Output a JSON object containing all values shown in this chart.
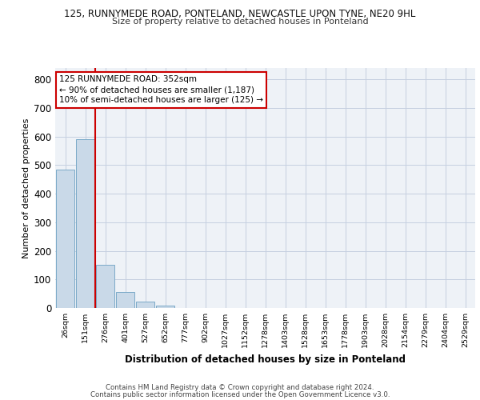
{
  "title_line1": "125, RUNNYMEDE ROAD, PONTELAND, NEWCASTLE UPON TYNE, NE20 9HL",
  "title_line2": "Size of property relative to detached houses in Ponteland",
  "xlabel": "Distribution of detached houses by size in Ponteland",
  "ylabel": "Number of detached properties",
  "bar_labels": [
    "26sqm",
    "151sqm",
    "276sqm",
    "401sqm",
    "527sqm",
    "652sqm",
    "777sqm",
    "902sqm",
    "1027sqm",
    "1152sqm",
    "1278sqm",
    "1403sqm",
    "1528sqm",
    "1653sqm",
    "1778sqm",
    "1903sqm",
    "2028sqm",
    "2154sqm",
    "2279sqm",
    "2404sqm",
    "2529sqm"
  ],
  "bar_values": [
    484,
    592,
    150,
    55,
    22,
    8,
    0,
    0,
    0,
    0,
    0,
    0,
    0,
    0,
    0,
    0,
    0,
    0,
    0,
    0,
    0
  ],
  "bar_color": "#c9d9e8",
  "bar_edge_color": "#7aaac8",
  "annotation_text_line1": "125 RUNNYMEDE ROAD: 352sqm",
  "annotation_text_line2": "← 90% of detached houses are smaller (1,187)",
  "annotation_text_line3": "10% of semi-detached houses are larger (125) →",
  "ylim": [
    0,
    840
  ],
  "yticks": [
    0,
    100,
    200,
    300,
    400,
    500,
    600,
    700,
    800
  ],
  "bg_color": "#eef2f7",
  "grid_color": "#c5cfe0",
  "footer_line1": "Contains HM Land Registry data © Crown copyright and database right 2024.",
  "footer_line2": "Contains public sector information licensed under the Open Government Licence v3.0.",
  "red_line_x": 1.5
}
